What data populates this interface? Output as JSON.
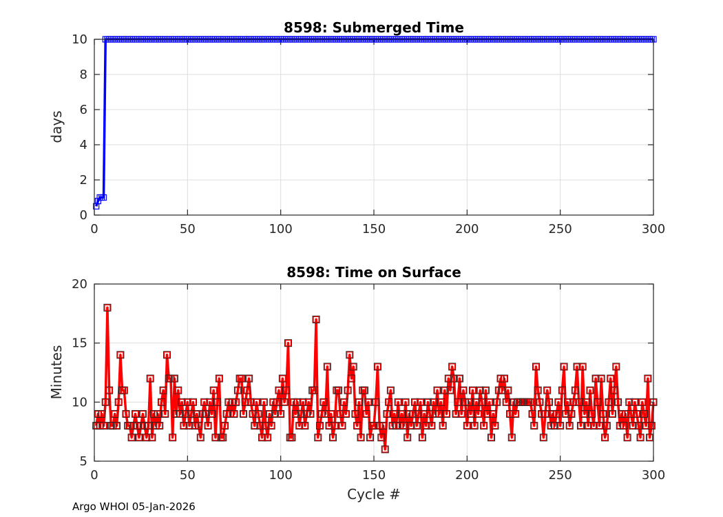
{
  "chart_data": [
    {
      "type": "line",
      "title": "8598: Submerged Time",
      "xlabel": "",
      "ylabel": "days",
      "xlim": [
        0,
        300
      ],
      "ylim": [
        0,
        10
      ],
      "xticks": [
        "0",
        "50",
        "100",
        "150",
        "200",
        "250",
        "300"
      ],
      "yticks": [
        "0",
        "2",
        "4",
        "6",
        "8",
        "10"
      ],
      "grid": true,
      "color": "#0000ff",
      "marker": "square",
      "x_start": 1,
      "y": [
        0.5,
        0.8,
        1,
        1,
        1,
        10,
        10,
        10,
        10,
        10,
        10,
        10,
        10,
        10,
        10,
        10,
        10,
        10,
        10,
        10,
        10,
        10,
        10,
        10,
        10,
        10,
        10,
        10,
        10,
        10,
        10,
        10,
        10,
        10,
        10,
        10,
        10,
        10,
        10,
        10,
        10,
        10,
        10,
        10,
        10,
        10,
        10,
        10,
        10,
        10,
        10,
        10,
        10,
        10,
        10,
        10,
        10,
        10,
        10,
        10,
        10,
        10,
        10,
        10,
        10,
        10,
        10,
        10,
        10,
        10,
        10,
        10,
        10,
        10,
        10,
        10,
        10,
        10,
        10,
        10,
        10,
        10,
        10,
        10,
        10,
        10,
        10,
        10,
        10,
        10,
        10,
        10,
        10,
        10,
        10,
        10,
        10,
        10,
        10,
        10,
        10,
        10,
        10,
        10,
        10,
        10,
        10,
        10,
        10,
        10,
        10,
        10,
        10,
        10,
        10,
        10,
        10,
        10,
        10,
        10,
        10,
        10,
        10,
        10,
        10,
        10,
        10,
        10,
        10,
        10,
        10,
        10,
        10,
        10,
        10,
        10,
        10,
        10,
        10,
        10,
        10,
        10,
        10,
        10,
        10,
        10,
        10,
        10,
        10,
        10,
        10,
        10,
        10,
        10,
        10,
        10,
        10,
        10,
        10,
        10,
        10,
        10,
        10,
        10,
        10,
        10,
        10,
        10,
        10,
        10,
        10,
        10,
        10,
        10,
        10,
        10,
        10,
        10,
        10,
        10,
        10,
        10,
        10,
        10,
        10,
        10,
        10,
        10,
        10,
        10,
        10,
        10,
        10,
        10,
        10,
        10,
        10,
        10,
        10,
        10,
        10,
        10,
        10,
        10,
        10,
        10,
        10,
        10,
        10,
        10,
        10,
        10,
        10,
        10,
        10,
        10,
        10,
        10,
        10,
        10,
        10,
        10,
        10,
        10,
        10,
        10,
        10,
        10,
        10,
        10,
        10,
        10,
        10,
        10,
        10,
        10,
        10,
        10,
        10,
        10,
        10,
        10,
        10,
        10,
        10,
        10,
        10,
        10,
        10,
        10,
        10,
        10,
        10,
        10,
        10,
        10,
        10,
        10,
        10,
        10,
        10,
        10,
        10,
        10,
        10,
        10,
        10,
        10,
        10,
        10,
        10,
        10,
        10,
        10,
        10,
        10,
        10,
        10,
        10,
        10,
        10,
        10,
        10,
        10,
        10,
        10,
        10,
        10,
        10,
        10,
        10,
        10,
        10,
        10,
        10,
        10,
        10,
        10,
        10,
        10
      ]
    },
    {
      "type": "line",
      "title": "8598: Time on Surface",
      "xlabel": "Cycle #",
      "ylabel": "Minutes",
      "xlim": [
        0,
        300
      ],
      "ylim": [
        5,
        20
      ],
      "xticks": [
        "0",
        "50",
        "100",
        "150",
        "200",
        "250",
        "300"
      ],
      "yticks": [
        "5",
        "10",
        "15",
        "20"
      ],
      "grid": true,
      "color": "#ff0000",
      "marker": "square",
      "x_start": 1,
      "y": [
        8,
        9,
        8,
        9,
        8,
        10,
        18,
        11,
        8,
        8,
        9,
        8,
        10,
        14,
        11,
        11,
        9,
        8,
        8,
        7,
        8,
        9,
        8,
        7,
        8,
        9,
        8,
        7,
        8,
        12,
        7,
        9,
        8,
        9,
        8,
        10,
        11,
        9,
        14,
        12,
        12,
        7,
        12,
        9,
        11,
        9,
        10,
        8,
        9,
        10,
        8,
        9,
        10,
        8,
        9,
        8,
        7,
        9,
        10,
        9,
        8,
        10,
        9,
        11,
        7,
        10,
        12,
        7,
        7,
        8,
        9,
        10,
        9,
        10,
        9,
        10,
        11,
        12,
        12,
        9,
        10,
        11,
        12,
        10,
        9,
        8,
        10,
        9,
        8,
        7,
        10,
        8,
        7,
        9,
        8,
        10,
        9,
        10,
        11,
        9,
        12,
        10,
        11,
        15,
        7,
        7,
        10,
        9,
        10,
        8,
        9,
        10,
        8,
        9,
        10,
        9,
        11,
        11,
        17,
        7,
        8,
        9,
        10,
        9,
        13,
        8,
        9,
        7,
        8,
        11,
        11,
        9,
        8,
        10,
        9,
        11,
        14,
        12,
        13,
        9,
        8,
        10,
        7,
        11,
        11,
        9,
        10,
        7,
        8,
        8,
        10,
        13,
        8,
        7,
        8,
        6,
        9,
        10,
        11,
        8,
        9,
        8,
        10,
        8,
        9,
        8,
        10,
        7,
        9,
        8,
        9,
        10,
        8,
        9,
        10,
        7,
        9,
        8,
        10,
        9,
        8,
        10,
        9,
        11,
        9,
        10,
        8,
        11,
        9,
        12,
        11,
        13,
        12,
        9,
        10,
        12,
        9,
        11,
        10,
        8,
        10,
        9,
        11,
        8,
        10,
        9,
        11,
        10,
        8,
        11,
        9,
        10,
        7,
        9,
        8,
        10,
        11,
        12,
        11,
        12,
        10,
        11,
        9,
        7,
        10,
        9,
        10,
        10,
        10,
        10,
        10,
        10,
        10,
        10,
        9,
        8,
        13,
        11,
        10,
        9,
        7,
        9,
        11,
        10,
        8,
        9,
        8,
        9,
        10,
        8,
        11,
        13,
        9,
        10,
        8,
        9,
        10,
        11,
        13,
        10,
        8,
        13,
        9,
        10,
        8,
        11,
        9,
        8,
        12,
        10,
        8,
        12,
        9,
        7,
        8,
        10,
        12,
        9,
        11,
        13,
        10,
        8,
        9,
        8,
        9,
        7,
        10,
        9,
        8,
        10,
        9,
        8,
        7,
        10,
        9,
        8,
        12,
        7,
        8,
        10
      ]
    }
  ],
  "footer": "Argo WHOI 05-Jan-2026"
}
